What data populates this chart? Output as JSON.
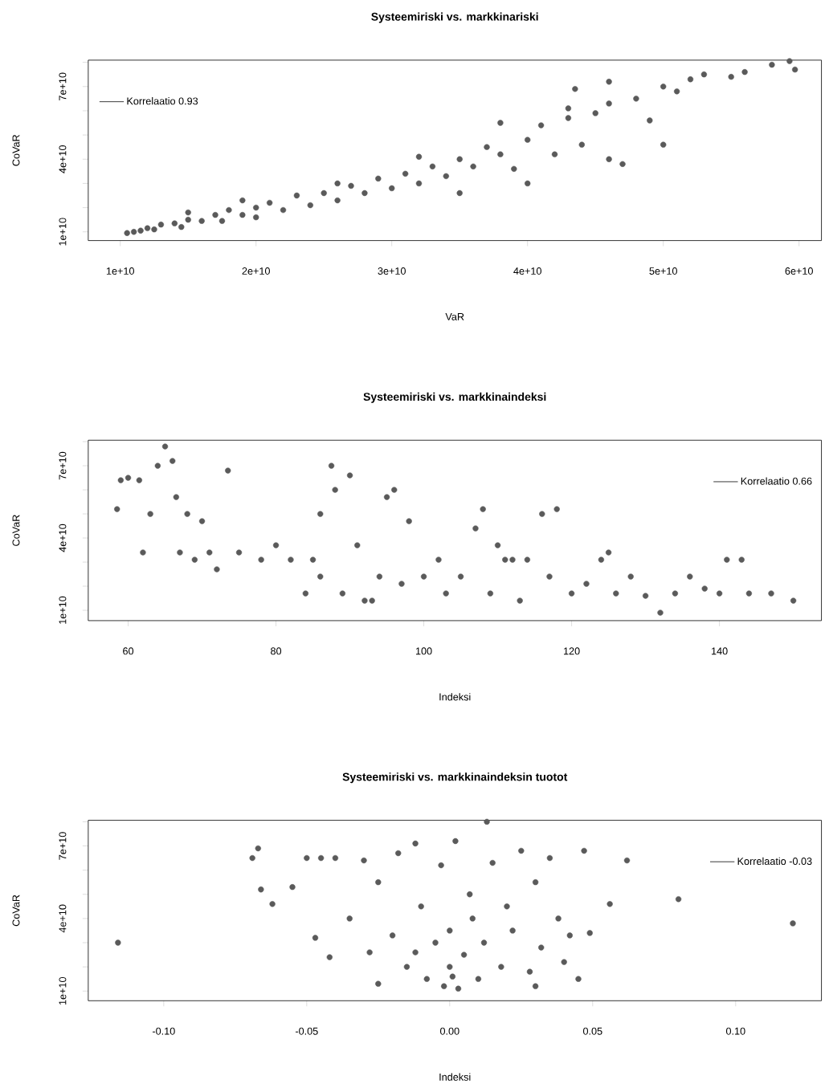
{
  "chart_data": [
    {
      "type": "scatter",
      "title": "Systeemiriski vs. markkinariski",
      "xlabel": "VaR",
      "ylabel": "CoVaR",
      "marker": "circle",
      "legend": "top left",
      "xlim": [
        7640000000.0,
        61650000000.0
      ],
      "ylim": [
        6400000000.0,
        80900000000.0
      ],
      "xticks": [
        {
          "value": 10000000000.0,
          "label": "1e+10"
        },
        {
          "value": 20000000000.0,
          "label": "2e+10"
        },
        {
          "value": 30000000000.0,
          "label": "3e+10"
        },
        {
          "value": 40000000000.0,
          "label": "4e+10"
        },
        {
          "value": 50000000000.0,
          "label": "5e+10"
        },
        {
          "value": 60000000000.0,
          "label": "6e+10"
        }
      ],
      "yticks": [
        {
          "value": 10000000000.0,
          "label": "1e+10"
        },
        {
          "value": 20000000000.0,
          "label": null
        },
        {
          "value": 30000000000.0,
          "label": null
        },
        {
          "value": 40000000000.0,
          "label": "4e+10"
        },
        {
          "value": 50000000000.0,
          "label": null
        },
        {
          "value": 60000000000.0,
          "label": null
        },
        {
          "value": 70000000000.0,
          "label": "7e+10"
        },
        {
          "value": 80000000000.0,
          "label": null
        }
      ],
      "x": [
        10500000000.0,
        11000000000.0,
        11500000000.0,
        12000000000.0,
        12500000000.0,
        13000000000.0,
        14000000000.0,
        14500000000.0,
        15000000000.0,
        16000000000.0,
        17000000000.0,
        17500000000.0,
        18000000000.0,
        19000000000.0,
        20000000000.0,
        20000000000.0,
        21000000000.0,
        22000000000.0,
        23000000000.0,
        24000000000.0,
        25000000000.0,
        26000000000.0,
        27000000000.0,
        28000000000.0,
        29000000000.0,
        30000000000.0,
        31000000000.0,
        32000000000.0,
        33000000000.0,
        34000000000.0,
        35000000000.0,
        35000000000.0,
        36000000000.0,
        37000000000.0,
        38000000000.0,
        39000000000.0,
        40000000000.0,
        40000000000.0,
        41000000000.0,
        42000000000.0,
        43000000000.0,
        44000000000.0,
        45000000000.0,
        46000000000.0,
        46000000000.0,
        47000000000.0,
        48000000000.0,
        49000000000.0,
        50000000000.0,
        50000000000.0,
        51000000000.0,
        52000000000.0,
        53000000000.0,
        55000000000.0,
        56000000000.0,
        58000000000.0,
        59300000000.0,
        59700000000.0,
        43500000000.0,
        32000000000.0,
        26000000000.0,
        19000000000.0,
        15000000000.0,
        38000000000.0,
        46000000000.0,
        43000000000.0
      ],
      "series": [
        {
          "name": "Korrelaatio 0.93",
          "color": "#5a5a5a",
          "values": [
            9500000000.0,
            10000000000.0,
            10500000000.0,
            11500000000.0,
            11000000000.0,
            13000000000.0,
            13500000000.0,
            12000000000.0,
            15000000000.0,
            14500000000.0,
            17000000000.0,
            14500000000.0,
            19000000000.0,
            17000000000.0,
            20000000000.0,
            16000000000.0,
            22000000000.0,
            19000000000.0,
            25000000000.0,
            21000000000.0,
            26000000000.0,
            23000000000.0,
            29000000000.0,
            26000000000.0,
            32000000000.0,
            28000000000.0,
            34000000000.0,
            30000000000.0,
            37000000000.0,
            33000000000.0,
            40000000000.0,
            26000000000.0,
            37000000000.0,
            45000000000.0,
            42000000000.0,
            36000000000.0,
            30000000000.0,
            48000000000.0,
            54000000000.0,
            42000000000.0,
            57000000000.0,
            46000000000.0,
            59000000000.0,
            63000000000.0,
            40000000000.0,
            38000000000.0,
            65000000000.0,
            56000000000.0,
            70000000000.0,
            46000000000.0,
            68000000000.0,
            73000000000.0,
            75000000000.0,
            74000000000.0,
            76000000000.0,
            79000000000.0,
            80500000000.0,
            77000000000.0,
            69000000000.0,
            41000000000.0,
            30000000000.0,
            23000000000.0,
            18000000000.0,
            55000000000.0,
            72000000000.0,
            61000000000.0
          ]
        }
      ]
    },
    {
      "type": "scatter",
      "title": "Systeemiriski vs. markkinaindeksi",
      "xlabel": "Indeksi",
      "ylabel": "CoVaR",
      "marker": "circle",
      "legend": "top right",
      "xlim": [
        54.6,
        153.8
      ],
      "ylim": [
        5700000000.0,
        80600000000.0
      ],
      "xticks": [
        60,
        80,
        100,
        120,
        140
      ],
      "yticks": [
        {
          "value": 10000000000.0,
          "label": "1e+10"
        },
        {
          "value": 20000000000.0,
          "label": null
        },
        {
          "value": 30000000000.0,
          "label": null
        },
        {
          "value": 40000000000.0,
          "label": "4e+10"
        },
        {
          "value": 50000000000.0,
          "label": null
        },
        {
          "value": 60000000000.0,
          "label": null
        },
        {
          "value": 70000000000.0,
          "label": "7e+10"
        },
        {
          "value": 80000000000.0,
          "label": null
        }
      ],
      "x": [
        58.5,
        59,
        60,
        61.5,
        62,
        63,
        64,
        65,
        66,
        66.5,
        67,
        68,
        69,
        70,
        71,
        72,
        73.5,
        75,
        78,
        80,
        82,
        84,
        85,
        86,
        87.5,
        88,
        89,
        90,
        91,
        92,
        94,
        95,
        96,
        97,
        98,
        100,
        102,
        103,
        105,
        107,
        108,
        109,
        110,
        112,
        114,
        116,
        117,
        118,
        120,
        122,
        124,
        126,
        128,
        130,
        132,
        134,
        136,
        138,
        140,
        141,
        143,
        144,
        147,
        150,
        125,
        86,
        93,
        111,
        113
      ],
      "series": [
        {
          "name": "Korrelaatio 0.66",
          "color": "#5a5a5a",
          "values": [
            52000000000.0,
            64000000000.0,
            65000000000.0,
            64000000000.0,
            34000000000.0,
            50000000000.0,
            70000000000.0,
            78000000000.0,
            72000000000.0,
            57000000000.0,
            34000000000.0,
            50000000000.0,
            31000000000.0,
            47000000000.0,
            34000000000.0,
            27000000000.0,
            68000000000.0,
            34000000000.0,
            31000000000.0,
            37000000000.0,
            31000000000.0,
            17000000000.0,
            31000000000.0,
            50000000000.0,
            70000000000.0,
            60000000000.0,
            17000000000.0,
            66000000000.0,
            37000000000.0,
            14000000000.0,
            24000000000.0,
            57000000000.0,
            60000000000.0,
            21000000000.0,
            47000000000.0,
            24000000000.0,
            31000000000.0,
            17000000000.0,
            24000000000.0,
            44000000000.0,
            52000000000.0,
            17000000000.0,
            37000000000.0,
            31000000000.0,
            31000000000.0,
            50000000000.0,
            24000000000.0,
            52000000000.0,
            17000000000.0,
            21000000000.0,
            31000000000.0,
            17000000000.0,
            24000000000.0,
            16000000000.0,
            9000000000.0,
            17000000000.0,
            24000000000.0,
            19000000000.0,
            17000000000.0,
            31000000000.0,
            31000000000.0,
            17000000000.0,
            17000000000.0,
            14000000000.0,
            34000000000.0,
            24000000000.0,
            14000000000.0,
            31000000000.0,
            14000000000.0
          ]
        }
      ]
    },
    {
      "type": "scatter",
      "title": "Systeemiriski vs. markkinaindeksin tuotot",
      "xlabel": "Indeksi",
      "ylabel": "CoVaR",
      "marker": "circle",
      "legend": "top right",
      "xlim": [
        -0.1264,
        0.13
      ],
      "ylim": [
        6000000000.0,
        80600000000.0
      ],
      "xticks": [
        {
          "value": -0.1,
          "label": "-0.10"
        },
        {
          "value": -0.05,
          "label": "-0.05"
        },
        {
          "value": 0,
          "label": "0.00"
        },
        {
          "value": 0.05,
          "label": "0.05"
        },
        {
          "value": 0.1,
          "label": "0.10"
        }
      ],
      "yticks": [
        {
          "value": 10000000000.0,
          "label": "1e+10"
        },
        {
          "value": 20000000000.0,
          "label": null
        },
        {
          "value": 30000000000.0,
          "label": null
        },
        {
          "value": 40000000000.0,
          "label": "4e+10"
        },
        {
          "value": 50000000000.0,
          "label": null
        },
        {
          "value": 60000000000.0,
          "label": null
        },
        {
          "value": 70000000000.0,
          "label": "7e+10"
        },
        {
          "value": 80000000000.0,
          "label": null
        }
      ],
      "x": [
        -0.116,
        -0.067,
        -0.069,
        -0.066,
        -0.062,
        -0.055,
        -0.05,
        -0.045,
        -0.047,
        -0.042,
        -0.04,
        -0.035,
        -0.03,
        -0.028,
        -0.025,
        -0.02,
        -0.018,
        -0.015,
        -0.012,
        -0.01,
        -0.008,
        -0.005,
        -0.003,
        -0.002,
        0,
        0,
        0.002,
        0.003,
        0.005,
        0.007,
        0.01,
        0.012,
        0.013,
        0.015,
        0.018,
        0.02,
        0.022,
        0.025,
        0.028,
        0.03,
        0.032,
        0.035,
        0.038,
        0.04,
        0.042,
        0.045,
        0.047,
        0.049,
        0.056,
        0.062,
        0.08,
        0.12,
        -0.025,
        0.03,
        0.008,
        -0.012,
        0.001
      ],
      "series": [
        {
          "name": "Korrelaatio -0.03",
          "color": "#5a5a5a",
          "values": [
            30000000000.0,
            69000000000.0,
            65000000000.0,
            52000000000.0,
            46000000000.0,
            53000000000.0,
            65000000000.0,
            65000000000.0,
            32000000000.0,
            24000000000.0,
            65000000000.0,
            40000000000.0,
            64000000000.0,
            26000000000.0,
            55000000000.0,
            33000000000.0,
            67000000000.0,
            20000000000.0,
            71000000000.0,
            45000000000.0,
            15000000000.0,
            30000000000.0,
            62000000000.0,
            12000000000.0,
            20000000000.0,
            35000000000.0,
            72000000000.0,
            11000000000.0,
            25000000000.0,
            50000000000.0,
            15000000000.0,
            30000000000.0,
            80000000000.0,
            63000000000.0,
            20000000000.0,
            45000000000.0,
            35000000000.0,
            68000000000.0,
            18000000000.0,
            55000000000.0,
            28000000000.0,
            65000000000.0,
            40000000000.0,
            22000000000.0,
            33000000000.0,
            15000000000.0,
            68000000000.0,
            34000000000.0,
            46000000000.0,
            64000000000.0,
            48000000000.0,
            38000000000.0,
            13000000000.0,
            12000000000.0,
            40000000000.0,
            26000000000.0,
            16000000000.0
          ]
        }
      ]
    }
  ]
}
